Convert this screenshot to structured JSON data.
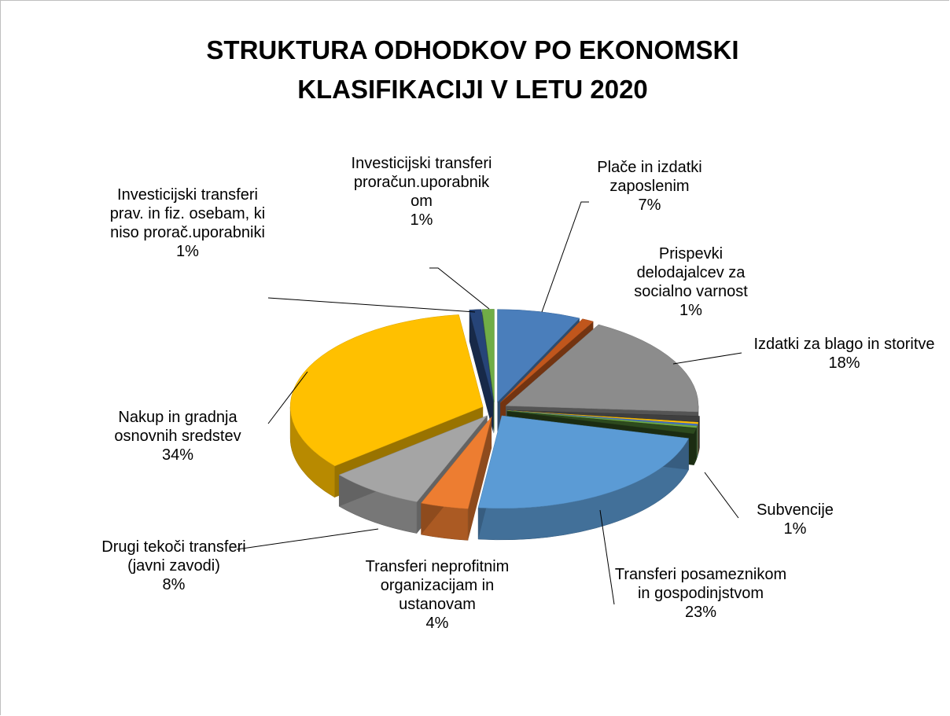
{
  "chart_data": {
    "type": "pie3d",
    "title": "STRUKTURA ODHODKOV PO EKONOMSKI KLASIFIKACIJI V LETU 2020",
    "categories": [
      "Plače in izdatki zaposlenim",
      "Prispevki delodajalcev za socialno varnost",
      "Izdatki za blago in storitve",
      null,
      null,
      null,
      null,
      "Subvencije",
      "Transferi posameznikom in gospodinjstvom",
      "Transferi neprofitnim organizacijam in ustanovam",
      "Drugi tekoči transferi (javni zavodi)",
      "Nakup in gradnja osnovnih sredstev",
      "Investicijski transferi prav. in fiz. osebam, ki niso prorač.uporabniki",
      "Investicijski transferi proračun.uporabnikom"
    ],
    "values": [
      7,
      1,
      18,
      1,
      0.3,
      0.3,
      0.3,
      1,
      23,
      4,
      8,
      34,
      1,
      1
    ],
    "value_labels": [
      "7%",
      "1%",
      "18%",
      null,
      null,
      null,
      null,
      "1%",
      "23%",
      "4%",
      "8%",
      "34%",
      "1%",
      "1%"
    ],
    "colors": [
      "#4a7ebb",
      "#c0561c",
      "#8c8c8c",
      "#3f3f3f",
      "#ffc000",
      "#4472c4",
      "#70ad47",
      "#2d4a1e",
      "#5b9bd5",
      "#ed7d31",
      "#a5a5a5",
      "#ffc000",
      "#264478",
      "#70ad47"
    ]
  }
}
